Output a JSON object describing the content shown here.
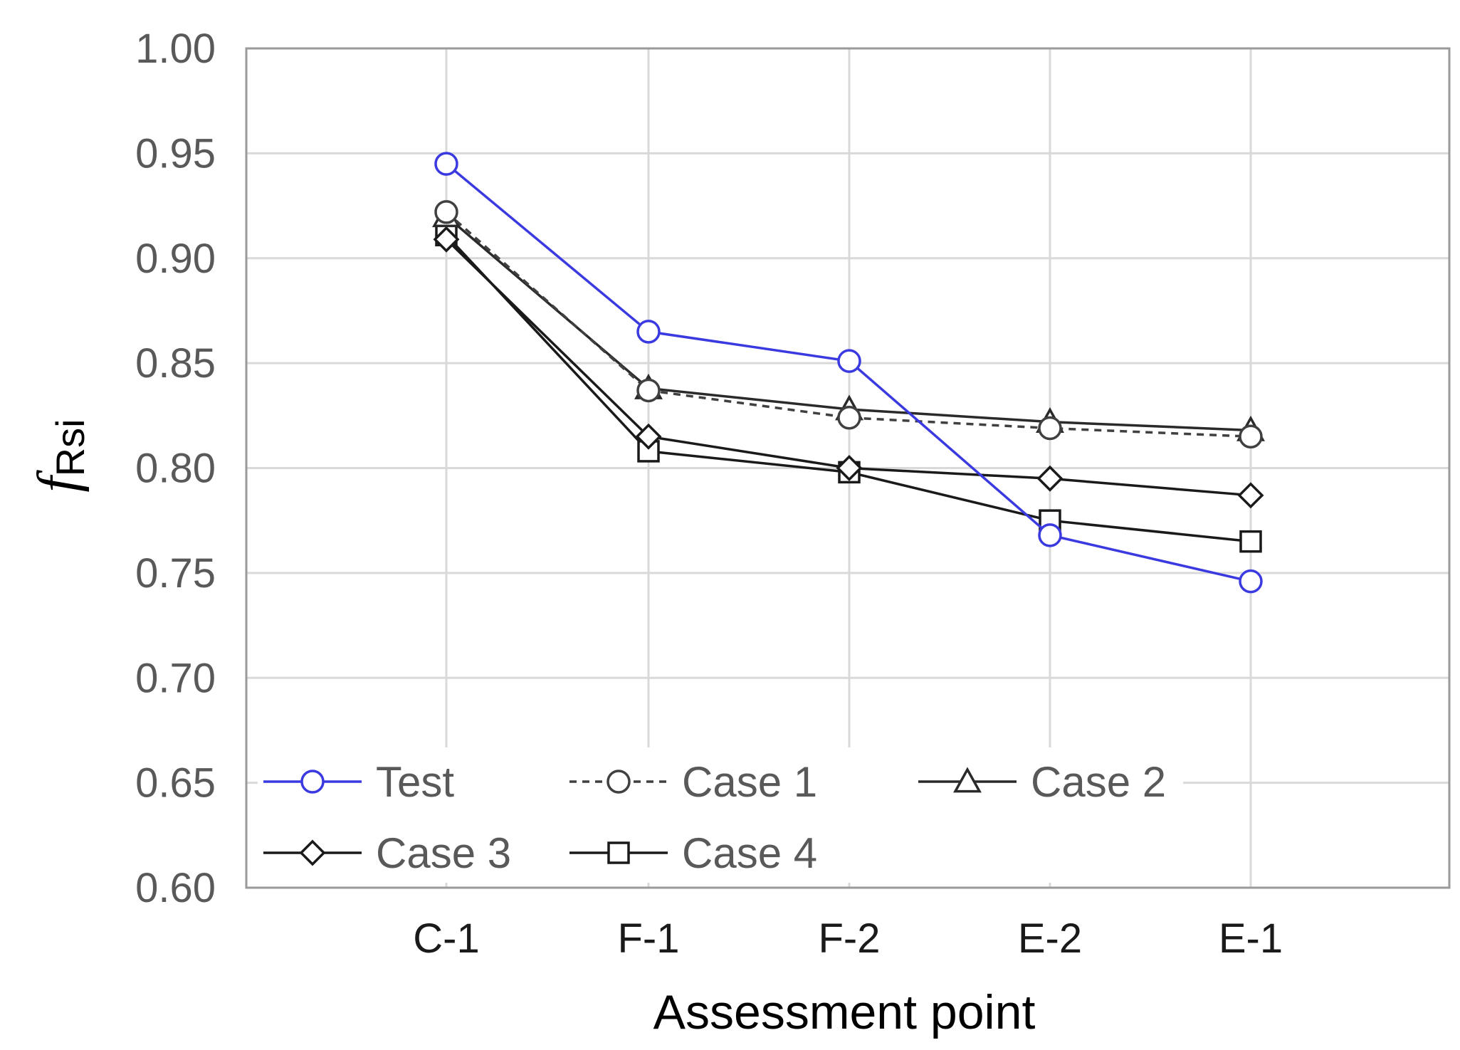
{
  "chart_data": {
    "type": "line",
    "title": "",
    "xlabel": "Assessment point",
    "ylabel_main": "f",
    "ylabel_sub": "Rsi",
    "categories": [
      "C-1",
      "F-1",
      "F-2",
      "E-2",
      "E-1"
    ],
    "ylim": [
      0.6,
      1.0
    ],
    "yticks": [
      "0.60",
      "0.65",
      "0.70",
      "0.75",
      "0.80",
      "0.85",
      "0.90",
      "0.95",
      "1.00"
    ],
    "grid": true,
    "legend_position": "bottom-left",
    "series": [
      {
        "name": "Test",
        "values": [
          0.945,
          0.865,
          0.851,
          0.768,
          0.746
        ],
        "color": "#3a3ae0",
        "marker": "circle",
        "dash": false
      },
      {
        "name": "Case 1",
        "values": [
          0.922,
          0.837,
          0.824,
          0.819,
          0.815
        ],
        "color": "#404040",
        "marker": "circle",
        "dash": true
      },
      {
        "name": "Case 2",
        "values": [
          0.92,
          0.838,
          0.828,
          0.822,
          0.818
        ],
        "color": "#2a2a2a",
        "marker": "triangle",
        "dash": false
      },
      {
        "name": "Case 3",
        "values": [
          0.909,
          0.815,
          0.8,
          0.795,
          0.787
        ],
        "color": "#1a1a1a",
        "marker": "diamond",
        "dash": false
      },
      {
        "name": "Case 4",
        "values": [
          0.911,
          0.808,
          0.798,
          0.775,
          0.765
        ],
        "color": "#1a1a1a",
        "marker": "square",
        "dash": false
      }
    ]
  }
}
